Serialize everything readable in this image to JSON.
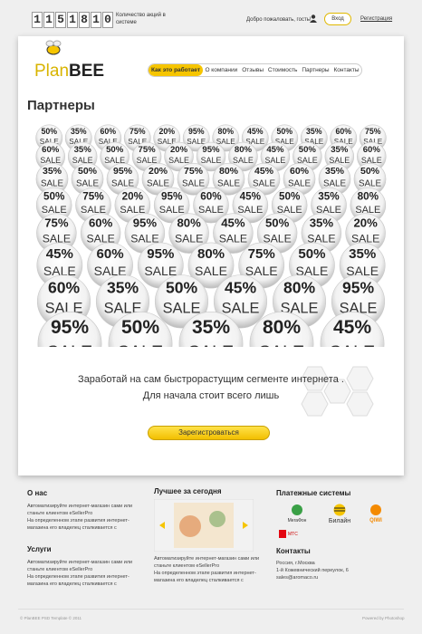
{
  "top_bar": {
    "counter_digits": [
      "1",
      "1",
      "5",
      "1",
      "8",
      "1",
      "0"
    ],
    "counter_caption": "Количество акций в системе",
    "welcome": "Добро пожаловать, гость!",
    "login": "Вход",
    "register": "Регистрация"
  },
  "header": {
    "logo_plan": "Plan",
    "logo_bee": "BEE",
    "nav": [
      "Как это работает",
      "О компании",
      "Отзывы",
      "Стоимость",
      "Партнеры",
      "Контакты"
    ]
  },
  "partners": {
    "title": "Партнеры",
    "sale_label": "SALE",
    "rows": [
      [
        "50%",
        "35%",
        "60%",
        "75%",
        "20%",
        "95%",
        "80%",
        "45%",
        "50%",
        "35%",
        "60%",
        "75%"
      ],
      [
        "60%",
        "35%",
        "50%",
        "75%",
        "20%",
        "95%",
        "80%",
        "45%",
        "50%",
        "35%",
        "60%"
      ],
      [
        "35%",
        "50%",
        "95%",
        "20%",
        "75%",
        "80%",
        "45%",
        "60%",
        "35%",
        "50%"
      ],
      [
        "50%",
        "75%",
        "20%",
        "95%",
        "60%",
        "45%",
        "50%",
        "35%",
        "80%"
      ],
      [
        "75%",
        "60%",
        "95%",
        "80%",
        "45%",
        "50%",
        "35%",
        "20%"
      ],
      [
        "45%",
        "60%",
        "95%",
        "80%",
        "75%",
        "50%",
        "35%"
      ],
      [
        "60%",
        "35%",
        "50%",
        "45%",
        "80%",
        "95%"
      ],
      [
        "95%",
        "50%",
        "35%",
        "80%",
        "45%"
      ]
    ]
  },
  "promo": {
    "line1": "Заработай на сам быстрорастущим сегменте интернета .",
    "line2": "Для начала стоит всего лишь",
    "button": "Зарегистроваться"
  },
  "footer": {
    "about": {
      "title": "О нас",
      "text1": "Автоматизируйте интернет-магазин сами или станьте клиентом eSellerPro",
      "text2": "На определенном этапе развития интернет-магазина его владелец сталкивается с"
    },
    "services": {
      "title": "Услуги",
      "text1": "Автоматизируйте интернет-магазин сами или станьте клиентом eSellerPro",
      "text2": "На определенном этапе развития интернет-магазина его владелец сталкивается с"
    },
    "best": {
      "title": "Лучшее за сегодня",
      "text1": "Автоматизируйте интернет-магазин сами или станьте клиентом eSellerPro",
      "text2": "На определенном этапе развития интернет-магазина его владелец сталкивается с"
    },
    "payments": {
      "title": "Платежные системы",
      "items": [
        "МегаФон",
        "Билайн",
        "QIWI",
        "МТС"
      ]
    },
    "contacts": {
      "title": "Контакты",
      "lines": [
        "Россия, г.Москва",
        "1-й Кожевнический переулок, 6",
        "sales@aromaco.ru"
      ]
    },
    "copyright": "© PlanBEE PSD Template © 2011",
    "powered": "Powered by Photoshop"
  }
}
